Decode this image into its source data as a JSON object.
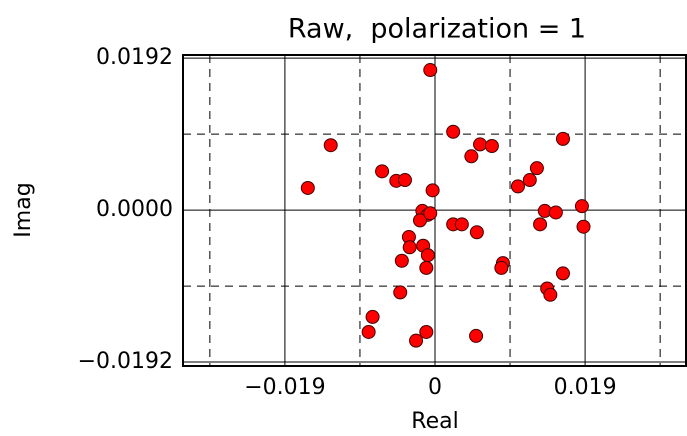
{
  "chart_data": {
    "type": "scatter",
    "title": "Raw,  polarization = 1",
    "x_label": "Real",
    "y_label": "Imag",
    "xlim": [
      -0.0319,
      0.0319
    ],
    "ylim": [
      -0.0197,
      0.0196
    ],
    "xticks": [
      {
        "value": -0.019,
        "label": "−0.019"
      },
      0,
      {
        "value": 0.019,
        "label": "0.019"
      }
    ],
    "yticks": [
      {
        "value": -0.0192,
        "label": "−0.0192"
      },
      {
        "value": 0,
        "label": "0.0000"
      },
      {
        "value": 0.0192,
        "label": "0.0192"
      }
    ],
    "xminor": [
      -0.0285,
      -0.0095,
      0.0095,
      0.0285
    ],
    "yminor": [
      -0.0096,
      0.0096
    ],
    "grid": true,
    "color": "#ff0000",
    "series": [
      {
        "name": "",
        "color": "#ff0000",
        "x": [
          -0.0006,
          -0.0132,
          -0.0161,
          -0.0067,
          -0.0049,
          -0.0038,
          -0.0003,
          0.0023,
          0.0046,
          0.0057,
          0.0072,
          0.0105,
          0.012,
          0.0129,
          0.0162,
          0.0186,
          0.0188,
          0.0139,
          0.0153,
          0.0133,
          -0.0016,
          -0.0009,
          -0.0019,
          0.0023,
          0.0034,
          0.0053,
          -0.0033,
          -0.0032,
          -0.0015,
          -0.0009,
          -0.0042,
          -0.0011,
          0.0086,
          0.0084,
          0.0162,
          0.0142,
          0.0146,
          -0.0044,
          -0.0079,
          -0.0084,
          -0.0011,
          -0.0024,
          0.0052,
          -0.0006
        ],
        "values": [
          0.0177,
          0.0082,
          0.0028,
          0.0049,
          0.0037,
          0.0038,
          0.0025,
          0.0099,
          0.0068,
          0.0083,
          0.0081,
          0.003,
          0.0038,
          0.0053,
          0.009,
          0.0005,
          -0.0021,
          -0.0001,
          -0.0003,
          -0.0018,
          -0.0001,
          -0.0006,
          -0.0013,
          -0.0018,
          -0.0018,
          -0.0028,
          -0.0034,
          -0.0047,
          -0.0045,
          -0.0057,
          -0.0064,
          -0.0073,
          -0.0067,
          -0.0073,
          -0.008,
          -0.0099,
          -0.0107,
          -0.0104,
          -0.0135,
          -0.0154,
          -0.0154,
          -0.0165,
          -0.0159,
          -0.0004
        ]
      }
    ]
  }
}
